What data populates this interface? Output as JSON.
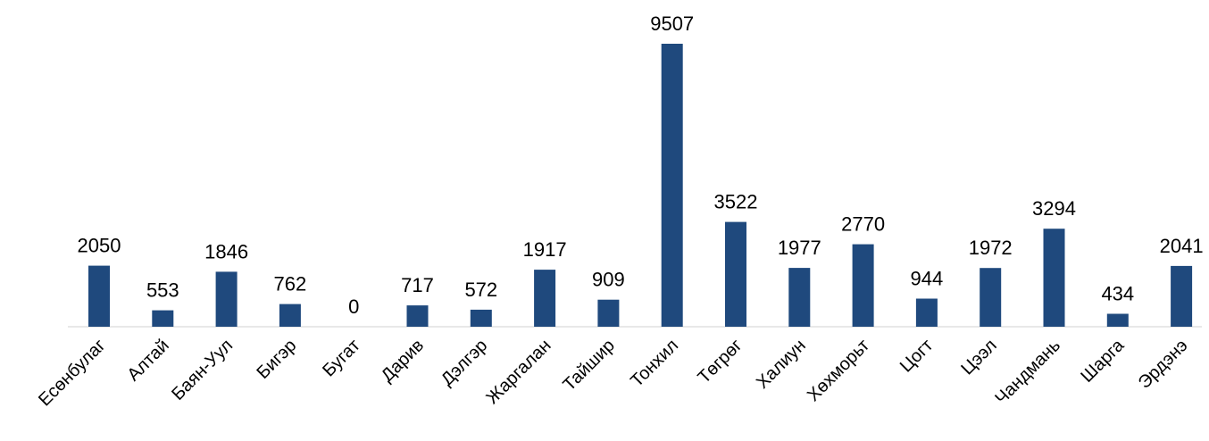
{
  "chart_data": {
    "type": "bar",
    "title": "",
    "xlabel": "",
    "ylabel": "",
    "grid": false,
    "legend": "none",
    "bar_color": "#1f497d",
    "ylim": [
      0,
      9507
    ],
    "categories": [
      "Есөнбулаг",
      "Алтай",
      "Баян-Уул",
      "Бигэр",
      "Бугат",
      "Дарив",
      "Дэлгэр",
      "Жаргалан",
      "Тайшир",
      "Тонхил",
      "Төгрөг",
      "Халиун",
      "Хөхморьт",
      "Цогт",
      "Цээл",
      "Чандмань",
      "Шарга",
      "Эрдэнэ"
    ],
    "values": [
      2050,
      553,
      1846,
      762,
      0,
      717,
      572,
      1917,
      909,
      9507,
      3522,
      1977,
      2770,
      944,
      1972,
      3294,
      434,
      2041
    ],
    "data_labels": [
      "2050",
      "553",
      "1846",
      "762",
      "0",
      "717",
      "572",
      "1917",
      "909",
      "9507",
      "3522",
      "1977",
      "2770",
      "944",
      "1972",
      "3294",
      "434",
      "2041"
    ]
  }
}
